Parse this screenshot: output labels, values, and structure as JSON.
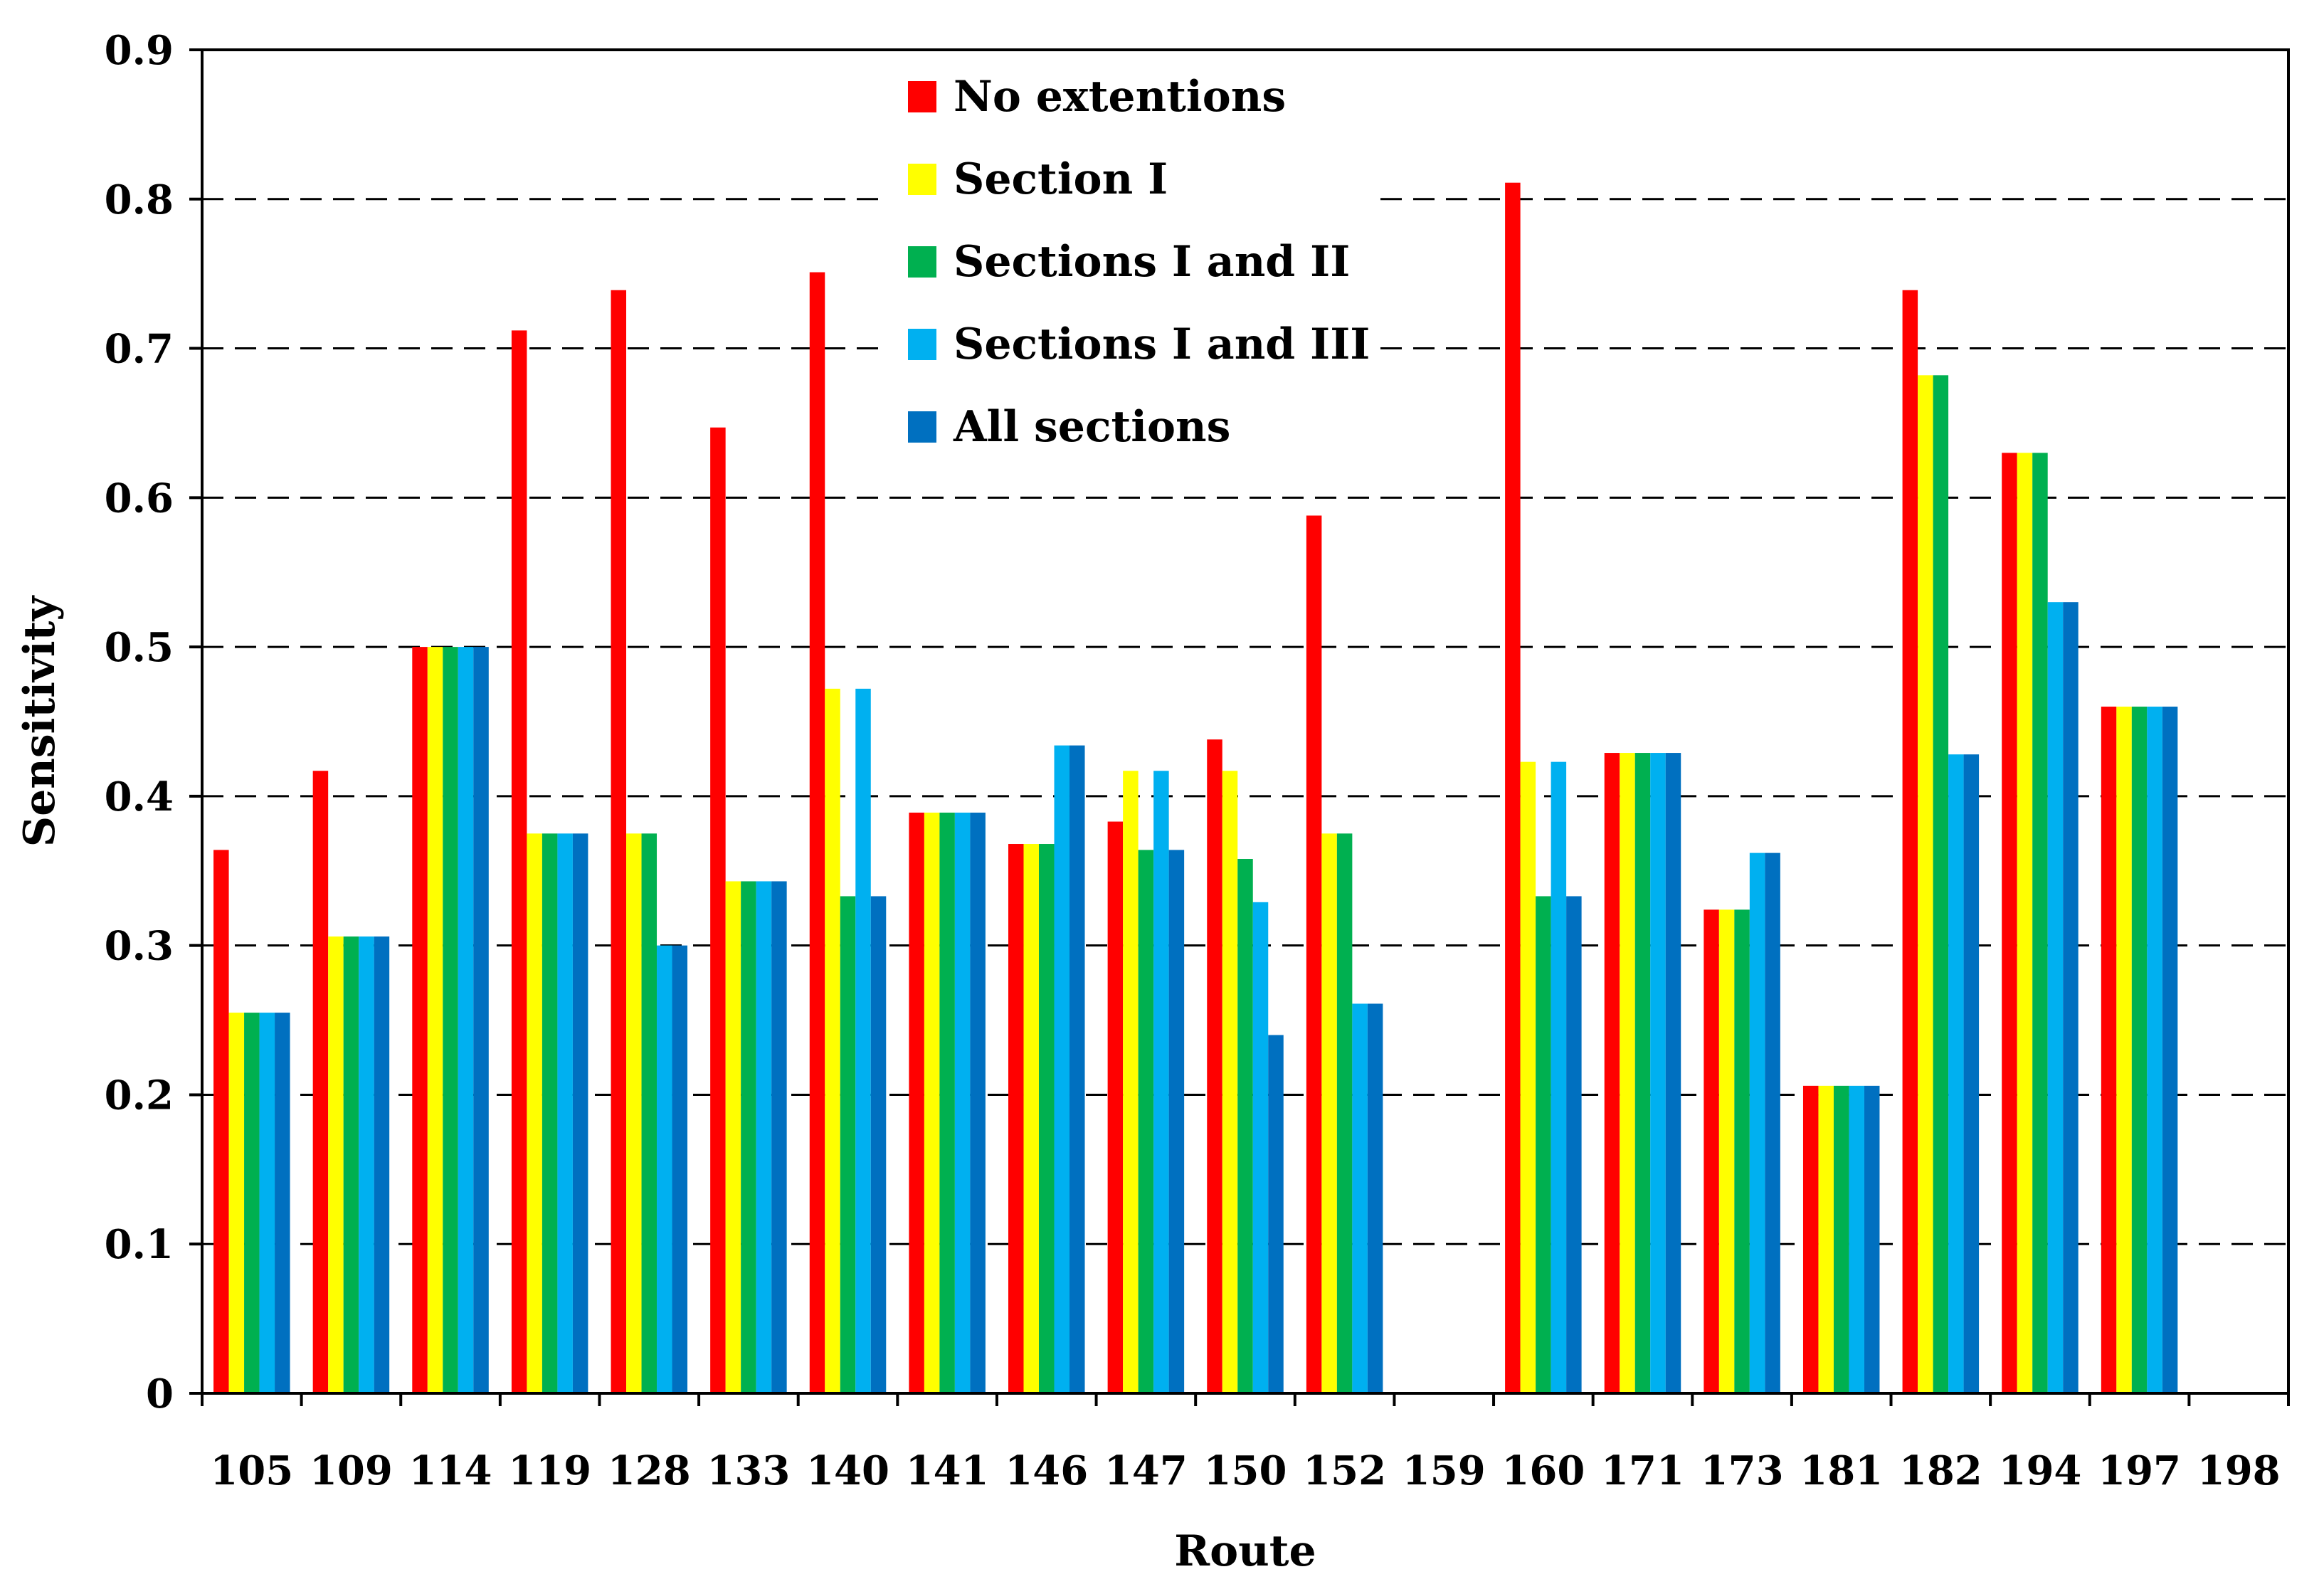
{
  "chart_data": {
    "type": "bar",
    "title": "",
    "xlabel": "Route",
    "ylabel": "Sensitivity",
    "ylim": [
      0,
      0.9
    ],
    "yticks": [
      "0",
      "0.1",
      "0.2",
      "0.3",
      "0.4",
      "0.5",
      "0.6",
      "0.7",
      "0.8",
      "0.9"
    ],
    "grid": "horizontal dashed",
    "legend_position": "top-center",
    "categories": [
      "105",
      "109",
      "114",
      "119",
      "128",
      "133",
      "140",
      "141",
      "146",
      "147",
      "150",
      "152",
      "159",
      "160",
      "171",
      "173",
      "181",
      "182",
      "194",
      "197",
      "198"
    ],
    "series": [
      {
        "name": "No extentions",
        "color": "#ff0000",
        "values": [
          0.364,
          0.417,
          0.5,
          0.712,
          0.739,
          0.647,
          0.751,
          0.389,
          0.368,
          0.383,
          0.438,
          0.588,
          0,
          0.811,
          0.429,
          0.324,
          0.206,
          0.739,
          0.63,
          0.46,
          0
        ]
      },
      {
        "name": "Section I",
        "color": "#ffff00",
        "values": [
          0.255,
          0.306,
          0.5,
          0.375,
          0.375,
          0.343,
          0.472,
          0.389,
          0.368,
          0.417,
          0.417,
          0.375,
          0,
          0.423,
          0.429,
          0.324,
          0.206,
          0.682,
          0.63,
          0.46,
          0
        ]
      },
      {
        "name": "Sections I and II",
        "color": "#00b050",
        "values": [
          0.255,
          0.306,
          0.5,
          0.375,
          0.375,
          0.343,
          0.333,
          0.389,
          0.368,
          0.364,
          0.358,
          0.375,
          0,
          0.333,
          0.429,
          0.324,
          0.206,
          0.682,
          0.63,
          0.46,
          0
        ]
      },
      {
        "name": "Sections I and III",
        "color": "#00b0f0",
        "values": [
          0.255,
          0.306,
          0.5,
          0.375,
          0.3,
          0.343,
          0.472,
          0.389,
          0.434,
          0.417,
          0.329,
          0.261,
          0,
          0.423,
          0.429,
          0.362,
          0.206,
          0.428,
          0.53,
          0.46,
          0
        ]
      },
      {
        "name": "All sections",
        "color": "#0070c0",
        "values": [
          0.255,
          0.306,
          0.5,
          0.375,
          0.3,
          0.343,
          0.333,
          0.389,
          0.434,
          0.364,
          0.24,
          0.261,
          0,
          0.333,
          0.429,
          0.362,
          0.206,
          0.428,
          0.53,
          0.46,
          0
        ]
      }
    ]
  }
}
